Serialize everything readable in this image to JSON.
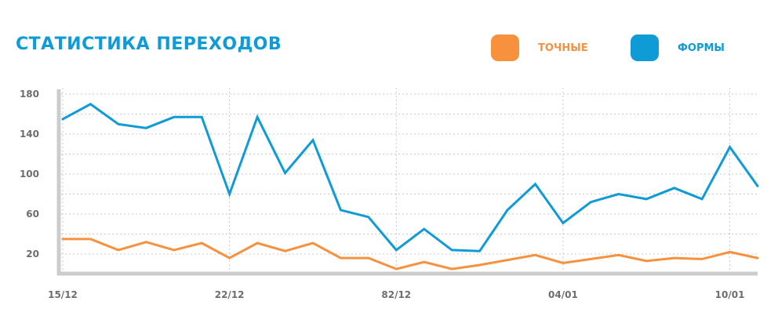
{
  "chart_data": {
    "type": "line",
    "title": "СТАТИСТИКА ПЕРЕХОДОВ",
    "x_tick_labels": [
      "15/12",
      "22/12",
      "82/12",
      "04/01",
      "10/01"
    ],
    "x_tick_indices": [
      0,
      6,
      12,
      18,
      24
    ],
    "ylim": [
      0,
      180
    ],
    "y_ticks": [
      20,
      60,
      100,
      140,
      180
    ],
    "grid": true,
    "legend_position": "top-right",
    "series": [
      {
        "name": "ТОЧНЫЕ",
        "color": "#f7913d",
        "values": [
          35,
          35,
          24,
          32,
          24,
          31,
          16,
          31,
          23,
          31,
          16,
          16,
          5,
          12,
          5,
          9,
          14,
          19,
          11,
          15,
          19,
          13,
          16,
          15,
          22,
          16
        ]
      },
      {
        "name": "ФОРМЫ",
        "color": "#0e9bd6",
        "values": [
          155,
          170,
          150,
          146,
          157,
          157,
          80,
          157,
          101,
          134,
          64,
          57,
          24,
          45,
          24,
          23,
          64,
          90,
          51,
          72,
          80,
          75,
          86,
          75,
          127,
          88
        ]
      }
    ]
  }
}
